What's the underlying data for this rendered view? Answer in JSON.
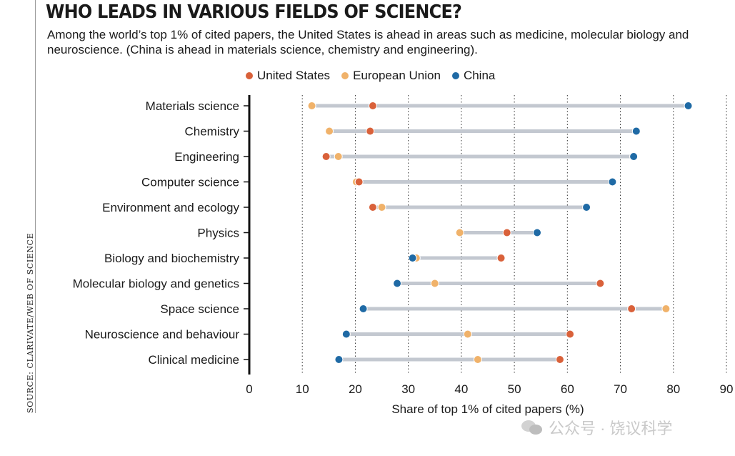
{
  "title": "WHO LEADS IN VARIOUS FIELDS OF SCIENCE?",
  "subtitle": "Among the world’s top 1% of cited papers, the United States is ahead in areas such as medicine, molecular biology and neuroscience. (China is ahead in materials science, chemistry and engineering).",
  "source": "SOURCE: CLARIVATE/WEB OF SCIENCE",
  "watermark": "公众号 · 饶议科学",
  "colors": {
    "united_states": "#d9613a",
    "european_union": "#f0b26a",
    "china": "#1f6aa5",
    "connector": "#c3c8d0",
    "grid": "#333333"
  },
  "chart_data": {
    "type": "dot-range",
    "title": "WHO LEADS IN VARIOUS FIELDS OF SCIENCE?",
    "xlabel": "Share of top 1% of cited papers (%)",
    "ylabel": "",
    "xlim": [
      0,
      90
    ],
    "xticks": [
      "0",
      "10",
      "20",
      "30",
      "40",
      "50",
      "60",
      "70",
      "80",
      "90"
    ],
    "grid": "vertical dotted",
    "legend_position": "top",
    "categories": [
      "Materials science",
      "Chemistry",
      "Engineering",
      "Computer science",
      "Environment and ecology",
      "Physics",
      "Biology and biochemistry",
      "Molecular biology and genetics",
      "Space science",
      "Neuroscience and behaviour",
      "Clinical medicine"
    ],
    "series": [
      {
        "name": "United States",
        "color": "#d9613a",
        "values": [
          23.3,
          22.8,
          14.5,
          20.7,
          23.3,
          48.6,
          47.5,
          66.2,
          72.1,
          60.5,
          58.6
        ]
      },
      {
        "name": "European Union",
        "color": "#f0b26a",
        "values": [
          11.8,
          15.1,
          16.8,
          20.2,
          25.0,
          39.7,
          31.5,
          35.0,
          78.6,
          41.2,
          43.1
        ]
      },
      {
        "name": "China",
        "color": "#1f6aa5",
        "values": [
          82.8,
          73.0,
          72.5,
          68.5,
          63.6,
          54.3,
          30.8,
          27.9,
          21.5,
          18.3,
          16.9
        ]
      }
    ]
  }
}
